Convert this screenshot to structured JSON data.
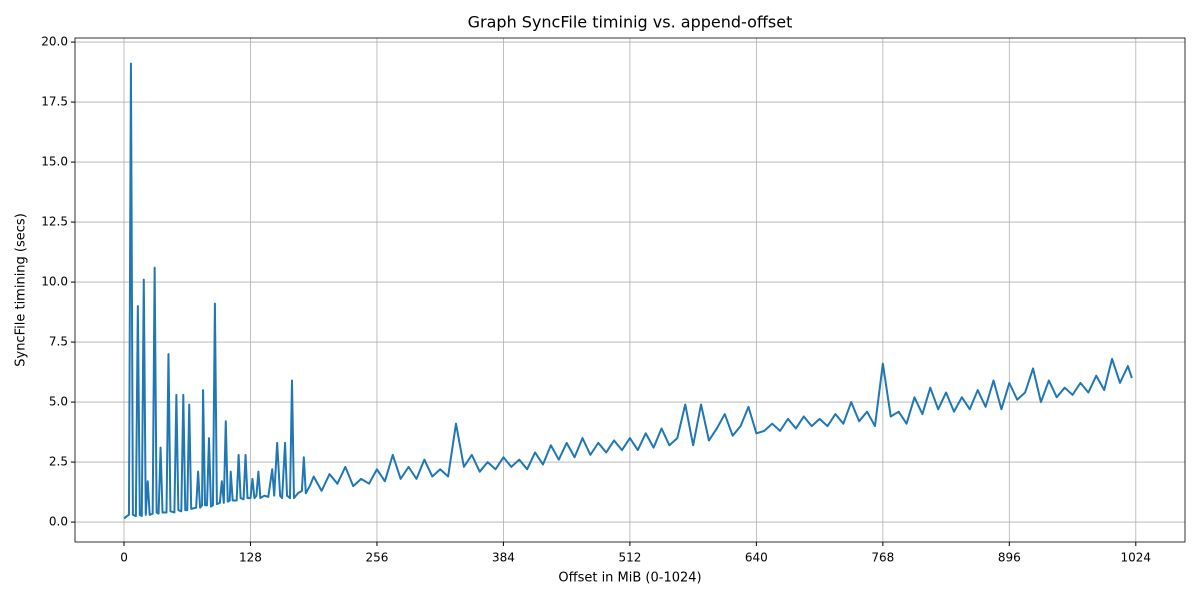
{
  "chart_data": {
    "type": "line",
    "title": "Graph SyncFile timinig vs. append-offset",
    "x_label": "Offset in MiB (0-1024)",
    "y_label": "SyncFile timining (secs)",
    "xlim": [
      -49.6,
      1073.8
    ],
    "ylim": [
      -0.83,
      20.17
    ],
    "grid": true,
    "xticks": [
      0,
      128,
      256,
      384,
      512,
      640,
      768,
      896,
      1024
    ],
    "yticks": [
      {
        "value": 0,
        "label": "0.0"
      },
      {
        "value": 2.5,
        "label": "2.5"
      },
      {
        "value": 5,
        "label": "5.0"
      },
      {
        "value": 7.5,
        "label": "7.5"
      },
      {
        "value": 10,
        "label": "10.0"
      },
      {
        "value": 12.5,
        "label": "12.5"
      },
      {
        "value": 15,
        "label": "15.0"
      },
      {
        "value": 17.5,
        "label": "17.5"
      },
      {
        "value": 20,
        "label": "20.0"
      }
    ],
    "x": [
      0,
      3,
      5,
      7,
      9,
      12,
      14,
      16,
      18,
      20,
      22,
      24,
      26,
      29,
      31,
      33,
      35,
      37,
      39,
      43,
      45,
      47,
      51,
      53,
      55,
      58,
      60,
      62,
      64,
      66,
      68,
      73,
      75,
      77,
      79,
      80,
      82,
      84,
      86,
      88,
      90,
      92,
      94,
      97,
      99,
      101,
      103,
      105,
      107,
      108,
      110,
      114,
      116,
      118,
      121,
      123,
      125,
      128,
      130,
      132,
      134,
      136,
      138,
      142,
      146,
      150,
      152,
      155,
      158,
      160,
      163,
      165,
      168,
      170,
      172,
      176,
      180,
      182,
      184,
      188,
      192,
      200,
      208,
      216,
      224,
      232,
      240,
      248,
      256,
      264,
      272,
      280,
      288,
      296,
      304,
      312,
      320,
      328,
      336,
      344,
      352,
      360,
      368,
      376,
      384,
      392,
      400,
      408,
      416,
      424,
      432,
      440,
      448,
      456,
      464,
      472,
      480,
      488,
      496,
      504,
      512,
      520,
      528,
      536,
      544,
      552,
      560,
      568,
      576,
      584,
      592,
      600,
      608,
      616,
      624,
      632,
      640,
      648,
      656,
      664,
      672,
      680,
      688,
      696,
      704,
      712,
      720,
      728,
      736,
      744,
      752,
      760,
      768,
      776,
      784,
      792,
      800,
      808,
      816,
      824,
      832,
      840,
      848,
      856,
      864,
      872,
      880,
      888,
      896,
      904,
      912,
      920,
      928,
      936,
      944,
      952,
      960,
      968,
      976,
      984,
      992,
      1000,
      1008,
      1016,
      1020
    ],
    "series": [
      {
        "color": "#1f77b4",
        "values": [
          0.15,
          0.25,
          0.3,
          19.1,
          0.3,
          0.25,
          9.0,
          0.3,
          0.25,
          10.1,
          0.3,
          1.7,
          0.3,
          0.35,
          10.6,
          0.4,
          0.35,
          3.1,
          0.4,
          0.4,
          7.0,
          0.45,
          0.4,
          5.3,
          0.5,
          0.45,
          5.3,
          0.5,
          0.5,
          4.9,
          0.55,
          0.6,
          2.1,
          0.6,
          0.7,
          5.5,
          0.7,
          0.7,
          3.5,
          0.65,
          0.7,
          9.1,
          0.75,
          0.8,
          1.7,
          0.8,
          4.2,
          0.85,
          0.9,
          2.1,
          0.9,
          0.9,
          2.8,
          1.0,
          0.95,
          2.8,
          1.0,
          1.0,
          1.8,
          1.0,
          1.1,
          2.1,
          1.0,
          1.1,
          1.05,
          2.2,
          1.1,
          3.3,
          1.1,
          1.0,
          3.3,
          1.1,
          1.0,
          5.9,
          1.0,
          1.2,
          1.3,
          2.7,
          1.2,
          1.5,
          1.9,
          1.3,
          2.0,
          1.6,
          2.3,
          1.5,
          1.8,
          1.6,
          2.2,
          1.7,
          2.8,
          1.8,
          2.3,
          1.8,
          2.6,
          1.9,
          2.2,
          1.9,
          4.1,
          2.3,
          2.8,
          2.1,
          2.5,
          2.2,
          2.7,
          2.3,
          2.6,
          2.2,
          2.9,
          2.4,
          3.2,
          2.6,
          3.3,
          2.7,
          3.5,
          2.8,
          3.3,
          2.9,
          3.4,
          3.0,
          3.5,
          3.0,
          3.7,
          3.1,
          3.9,
          3.2,
          3.5,
          4.9,
          3.2,
          4.9,
          3.4,
          3.9,
          4.5,
          3.6,
          4.0,
          4.8,
          3.7,
          3.8,
          4.1,
          3.8,
          4.3,
          3.9,
          4.4,
          4.0,
          4.3,
          4.0,
          4.5,
          4.1,
          5.0,
          4.2,
          4.6,
          4.0,
          6.6,
          4.4,
          4.6,
          4.1,
          5.2,
          4.5,
          5.6,
          4.7,
          5.4,
          4.6,
          5.2,
          4.7,
          5.5,
          4.8,
          5.9,
          4.7,
          5.8,
          5.1,
          5.4,
          6.4,
          5.0,
          5.9,
          5.2,
          5.6,
          5.3,
          5.8,
          5.4,
          6.1,
          5.5,
          6.8,
          5.8,
          6.5,
          6.0
        ]
      }
    ]
  }
}
